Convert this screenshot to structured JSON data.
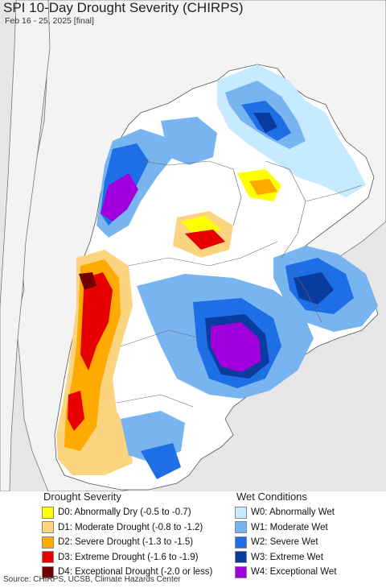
{
  "title": "SPI 10-Day Drought Severity (CHIRPS)",
  "subtitle": "Feb 16 - 25, 2025 [final]",
  "colors": {
    "ocean": "#e8e8e8",
    "land": "#ffffff",
    "outside_land": "#f2f2f2",
    "border": "#666666"
  },
  "legend": {
    "drought": {
      "heading": "Drought Severity",
      "items": [
        {
          "label": "D0: Abnormally Dry (-0.5 to -0.7)",
          "color": "#ffff00"
        },
        {
          "label": "D1: Moderate Drought (-0.8 to -1.2)",
          "color": "#fcd37f"
        },
        {
          "label": "D2: Severe Drought (-1.3 to -1.5)",
          "color": "#ffaa00"
        },
        {
          "label": "D3: Extreme Drought (-1.6 to -1.9)",
          "color": "#e60000"
        },
        {
          "label": "D4: Exceptional Drought (-2.0 or less)",
          "color": "#730000"
        }
      ]
    },
    "wet": {
      "heading": "Wet Conditions",
      "items": [
        {
          "label": "W0: Abnormally Wet",
          "color": "#c6eaff"
        },
        {
          "label": "W1: Moderate Wet",
          "color": "#78b4f0"
        },
        {
          "label": "W2: Severe Wet",
          "color": "#1e6ee6"
        },
        {
          "label": "W3: Extreme Wet",
          "color": "#0a3ca0"
        },
        {
          "label": "W4: Exceptional Wet",
          "color": "#a000dc"
        }
      ]
    }
  },
  "source": "Source: CHIRPS, UCSB, Climate Hazards Center"
}
